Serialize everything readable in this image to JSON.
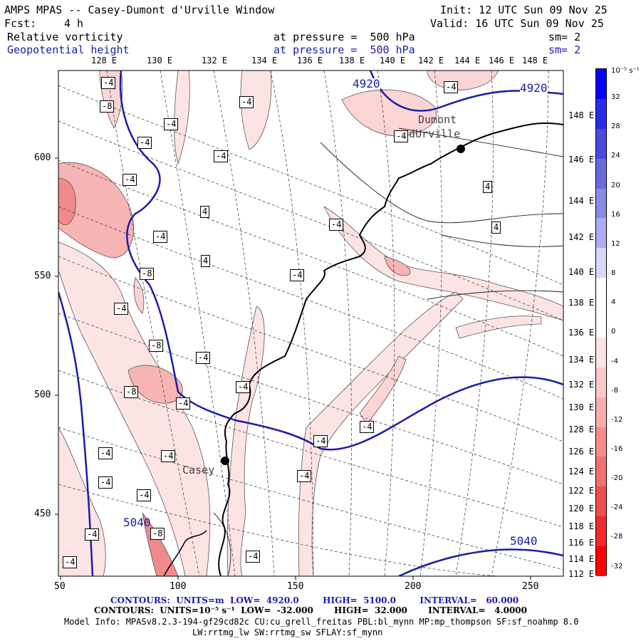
{
  "header": {
    "title_left": "AMPS MPAS -- Casey-Dumont d'Urville Window",
    "fcst_label": "Fcst:",
    "fcst_value": "4 h",
    "init": "Init: 12 UTC Sun 09 Nov 25",
    "valid": "Valid: 16 UTC Sun 09 Nov 25",
    "field1_name": "Relative vorticity",
    "field1_level": "at pressure =  500 hPa",
    "field1_sm": "sm= 2",
    "field2_name": "Geopotential height",
    "field2_level": "at pressure =  500 hPa",
    "field2_sm": "sm= 2"
  },
  "map": {
    "top_lon_labels": [
      "128 E",
      "130 E",
      "132 E",
      "134 E",
      "136 E",
      "138 E",
      "140 E",
      "142 E",
      "144 E",
      "146 E",
      "148 E"
    ],
    "right_lon_labels": [
      "148 E",
      "146 E",
      "144 E",
      "142 E",
      "140 E",
      "138 E",
      "136 E",
      "134 E",
      "132 E",
      "130 E",
      "128 E",
      "126 E",
      "124 E",
      "122 E",
      "120 E",
      "118 E",
      "116 E",
      "114 E",
      "112 E"
    ],
    "x_ticks": [
      "50",
      "100",
      "150",
      "200",
      "250"
    ],
    "y_ticks": [
      "600",
      "550",
      "500",
      "450"
    ],
    "station_casey": "Casey",
    "station_dumont_1": "Dumont",
    "station_dumont_2": "dUrville",
    "height_labels": [
      "4920",
      "4920",
      "5040",
      "5040"
    ],
    "vort_labels": [
      "-4",
      "-8",
      "-4",
      "-4",
      "-4",
      "-4",
      "-4",
      "-8",
      "-4",
      "-4",
      "-8",
      "-4",
      "-8",
      "-4",
      "-4",
      "-4",
      "4",
      "4",
      "-4",
      "-4",
      "-4",
      "4",
      "4",
      "-4",
      "-4",
      "-4",
      "-4",
      "-4",
      "-4",
      "-4",
      "-8",
      "-4",
      "-4",
      "-4"
    ],
    "colors": {
      "height_contour": "#1c1ca8",
      "coast": "#000000"
    }
  },
  "colorbar": {
    "unit_label": "10⁻⁵ s⁻¹",
    "levels": [
      "32",
      "28",
      "24",
      "20",
      "16",
      "12",
      "8",
      "4",
      "0",
      "-4",
      "-8",
      "-12",
      "-16",
      "-20",
      "-24",
      "-28",
      "-32"
    ],
    "colors": [
      "#0000ff",
      "#2a2ae8",
      "#4a4ae0",
      "#6a6ae0",
      "#8a8ae8",
      "#adadf0",
      "#d8d8fa",
      "#ffffff",
      "#ffffff",
      "#fde3e3",
      "#fbc9c9",
      "#f9acac",
      "#f68e8e",
      "#f37070",
      "#f04d4d",
      "#ee2a2a",
      "#ff0000"
    ]
  },
  "footer": {
    "line1_contours": "CONTOURS:  UNITS=m  LOW=  4920.0        HIGH=  5100.0        INTERVAL=   60.000",
    "line2_contours": "CONTOURS:  UNITS=10⁻⁵ s⁻¹  LOW=  -32.000       HIGH=  32.000       INTERVAL=   4.0000",
    "model_info": "Model Info: MPASv8.2.3-194-gf29cd82c CU:cu_grell_freitas PBL:bl_mynn MP:mp_thompson SF:sf_noahmp 8.0",
    "model_info2": "LW:rrtmg_lw SW:rrtmg_sw SFLAY:sf_mynn"
  }
}
